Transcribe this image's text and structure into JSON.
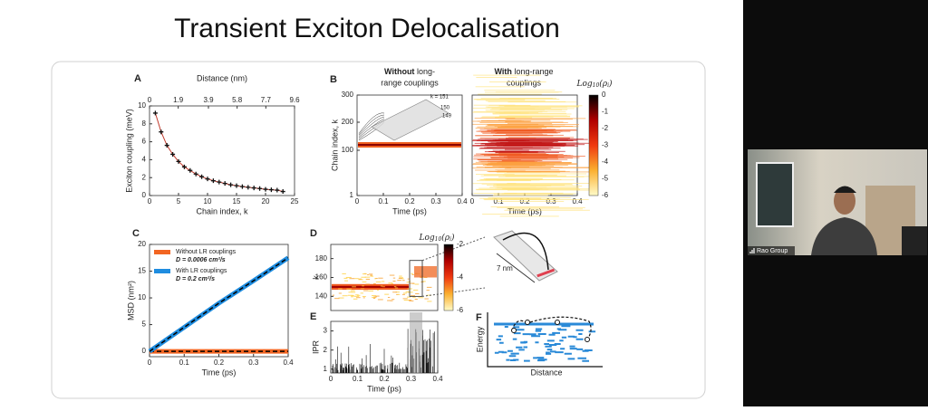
{
  "slide": {
    "title": "Transient Exciton Delocalisation",
    "panels": {
      "a": {
        "label": "A",
        "xlabel": "Chain index, k",
        "ylabel": "Exciton coupling (meV)",
        "x2label": "Distance (nm)",
        "xlim": [
          0,
          25
        ],
        "xticks": [
          0,
          5,
          10,
          15,
          20,
          25
        ],
        "ylim": [
          0,
          10
        ],
        "yticks": [
          0,
          2,
          4,
          6,
          8,
          10
        ],
        "x2lim": [
          0,
          9.6
        ],
        "x2ticks": [
          0,
          1.9,
          3.9,
          5.8,
          7.7,
          9.6
        ],
        "x": [
          1,
          2,
          3,
          4,
          5,
          6,
          7,
          8,
          9,
          10,
          11,
          12,
          13,
          14,
          15,
          16,
          17,
          18,
          19,
          20,
          21,
          22,
          23
        ],
        "values": [
          9.2,
          7.1,
          5.6,
          4.6,
          3.8,
          3.2,
          2.8,
          2.4,
          2.1,
          1.85,
          1.65,
          1.5,
          1.35,
          1.2,
          1.1,
          1.0,
          0.92,
          0.85,
          0.78,
          0.7,
          0.65,
          0.6,
          0.45
        ]
      },
      "b": {
        "label": "B",
        "ylabel": "Chain index, k",
        "xlabel": "Time (ps)",
        "title_left": [
          "Without",
          "long-",
          "range couplings"
        ],
        "title_right": [
          "With",
          "long-range",
          "couplings"
        ],
        "xlim": [
          0,
          0.4
        ],
        "xticks": [
          0,
          0.1,
          0.2,
          0.3,
          0.4
        ],
        "yticks": [
          1,
          100,
          200,
          300
        ],
        "inset": [
          "k = 151",
          "150",
          "149"
        ],
        "colorbar_label": [
          "Log",
          "10",
          "(ρ",
          "i",
          ")"
        ],
        "colorbar_ticks": [
          0,
          -1,
          -2,
          -3,
          -4,
          -5,
          -6
        ]
      },
      "c": {
        "label": "C",
        "xlabel": "Time (ps)",
        "ylabel": "MSD (nm²)",
        "xlim": [
          0,
          0.4
        ],
        "xticks": [
          0,
          0.1,
          0.2,
          0.3,
          0.4
        ],
        "ylim": [
          -1,
          20
        ],
        "yticks": [
          0,
          5,
          10,
          15,
          20
        ],
        "x": [
          0,
          0.1,
          0.2,
          0.3,
          0.4
        ],
        "series": [
          {
            "name": "Without LR couplings",
            "note": "D = 0.0006 cm²/s",
            "color": "#f26522",
            "values": [
              0,
              0,
              0,
              0,
              0
            ]
          },
          {
            "name": "With LR couplings",
            "note": "D = 0.2 cm²/s",
            "color": "#1f8de0",
            "values": [
              0,
              4.5,
              9,
              13.2,
              17.5
            ]
          }
        ]
      },
      "d": {
        "label": "D",
        "ylabel": "k",
        "ylim": [
          125,
          195
        ],
        "yticks": [
          140,
          160,
          180
        ],
        "xlim": [
          0,
          0.4
        ],
        "colorbar_label": [
          "Log",
          "10",
          "(ρ",
          "i",
          ")"
        ],
        "colorbar_ticks": [
          -2,
          -4,
          -6
        ],
        "inset": "7 nm"
      },
      "e": {
        "label": "E",
        "ylabel": "IPR",
        "xlabel": "Time (ps)",
        "xlim": [
          0,
          0.4
        ],
        "xticks": [
          0,
          0.1,
          0.2,
          0.3,
          0.4
        ],
        "ylim": [
          0.8,
          3.5
        ],
        "yticks": [
          1,
          2,
          3
        ]
      },
      "f": {
        "label": "F",
        "ylabel": "Energy",
        "xlabel": "Distance"
      }
    }
  },
  "webcam": {
    "name": "Rao Group"
  }
}
